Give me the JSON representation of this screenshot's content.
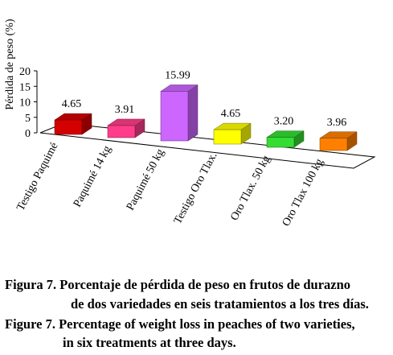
{
  "chart_data": {
    "type": "bar",
    "style": "3d",
    "ylabel": "Pérdida de peso (%)",
    "ylim": [
      0,
      20
    ],
    "yticks": [
      0,
      5,
      10,
      15,
      20
    ],
    "grid": false,
    "categories": [
      "Testigo Paquimé",
      "Paquimé 14 kg",
      "Paquimé 50 kg",
      "Testigo Oro Tlax.",
      "Oro Tlax. 50 kg",
      "Oro Tlax 100 kg"
    ],
    "values": [
      4.65,
      3.91,
      15.99,
      4.65,
      3.2,
      3.96
    ],
    "value_labels": [
      "4.65",
      "3.91",
      "15.99",
      "4.65",
      "3.20",
      "3.96"
    ],
    "colors": [
      "#d40000",
      "#ff3d8a",
      "#cc66ff",
      "#ffff00",
      "#33dd33",
      "#ff8000"
    ]
  },
  "caption": {
    "es_line1": "Figura 7. Porcentaje de pérdida de peso en frutos de durazno",
    "es_line2": "de dos variedades en seis tratamientos a los tres días.",
    "en_line1": "Figure 7. Percentage of weight loss in peaches of two varieties,",
    "en_line2": "in six treatments at three days."
  }
}
